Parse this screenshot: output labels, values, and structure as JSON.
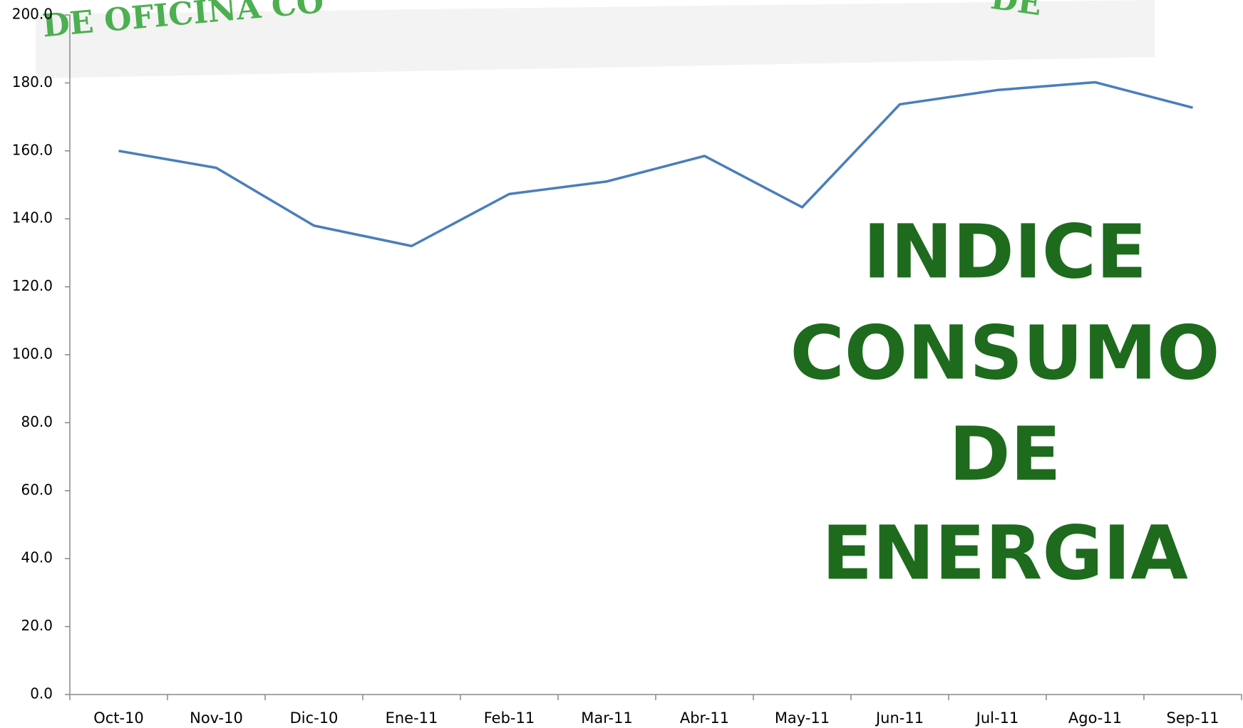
{
  "chart_data": {
    "type": "line",
    "banner": [
      "DE OFICINA CO",
      "DE"
    ],
    "annotation": [
      "INDICE",
      "CONSUMO",
      "DE",
      "ENERGIA"
    ],
    "categories": [
      "Oct-10",
      "Nov-10",
      "Dic-10",
      "Ene-11",
      "Feb-11",
      "Mar-11",
      "Abr-11",
      "May-11",
      "Jun-11",
      "Jul-11",
      "Ago-11",
      "Sep-11"
    ],
    "series": [
      {
        "name": null,
        "color": "#4a7ebb",
        "values": [
          160,
          155,
          138,
          132,
          147.3,
          151,
          158.5,
          143.4,
          173.7,
          177.9,
          180.2,
          172.7
        ]
      }
    ],
    "ylim": [
      0,
      200
    ],
    "yticks": [
      {
        "value": 0,
        "label": "0.0"
      },
      {
        "value": 20,
        "label": "20.0"
      },
      {
        "value": 40,
        "label": "40.0"
      },
      {
        "value": 60,
        "label": "60.0"
      },
      {
        "value": 80,
        "label": "80.0"
      },
      {
        "value": 100,
        "label": "100.0"
      },
      {
        "value": 120,
        "label": "120.0"
      },
      {
        "value": 140,
        "label": "140.0"
      },
      {
        "value": 160,
        "label": "160.0"
      },
      {
        "value": 180,
        "label": "180.0"
      },
      {
        "value": 200,
        "label": "200.0"
      }
    ],
    "grid": false
  }
}
